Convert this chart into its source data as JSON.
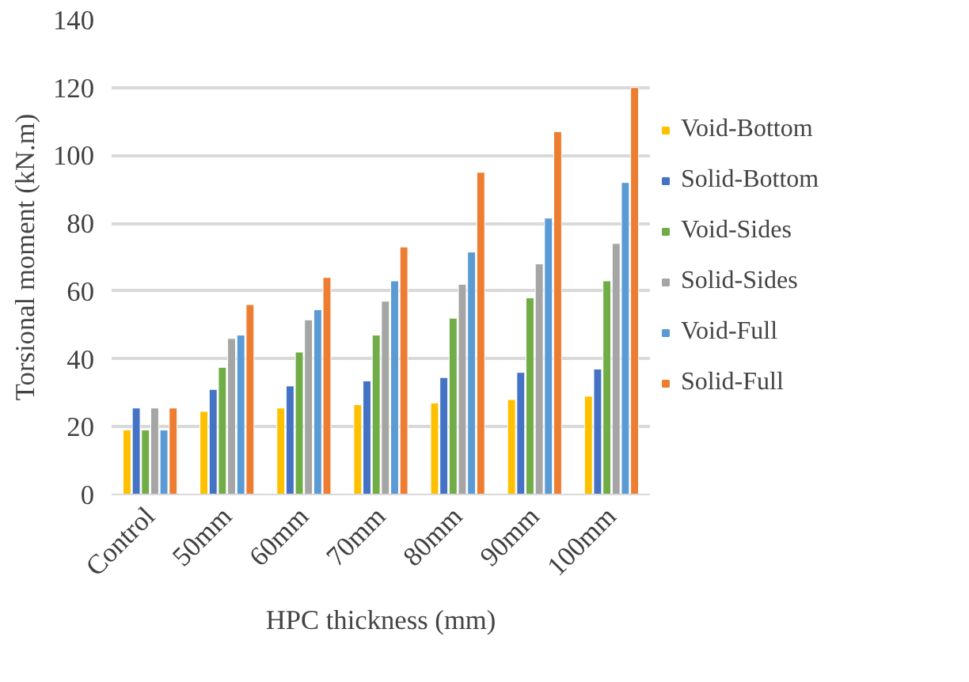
{
  "chart_data": {
    "type": "bar",
    "xlabel": "HPC thickness (mm)",
    "ylabel": "Torsional moment (kN.m)",
    "categories": [
      "Control",
      "50mm",
      "60mm",
      "70mm",
      "80mm",
      "90mm",
      "100mm"
    ],
    "series": [
      {
        "name": "Void-Bottom",
        "color": "#ffc000",
        "values": [
          19,
          24.5,
          25.5,
          26.5,
          27,
          28,
          29
        ]
      },
      {
        "name": "Solid-Bottom",
        "color": "#4472c4",
        "values": [
          25.5,
          31,
          32,
          33.5,
          34.5,
          36,
          37
        ]
      },
      {
        "name": "Void-Sides",
        "color": "#70ad47",
        "values": [
          19,
          37.5,
          42,
          47,
          52,
          58,
          63
        ]
      },
      {
        "name": "Solid-Sides",
        "color": "#a5a5a5",
        "values": [
          25.5,
          46,
          51.5,
          57,
          62,
          68,
          74
        ]
      },
      {
        "name": "Void-Full",
        "color": "#5b9bd5",
        "values": [
          19,
          47,
          54.5,
          63,
          71.5,
          81.5,
          92
        ]
      },
      {
        "name": "Solid-Full",
        "color": "#ed7d31",
        "values": [
          25.5,
          56,
          64,
          73,
          95,
          107,
          120
        ]
      }
    ],
    "ylim": [
      0,
      140
    ],
    "yticks": [
      0,
      20,
      40,
      60,
      80,
      100,
      120,
      140
    ],
    "grid": "y",
    "legend": "right"
  }
}
